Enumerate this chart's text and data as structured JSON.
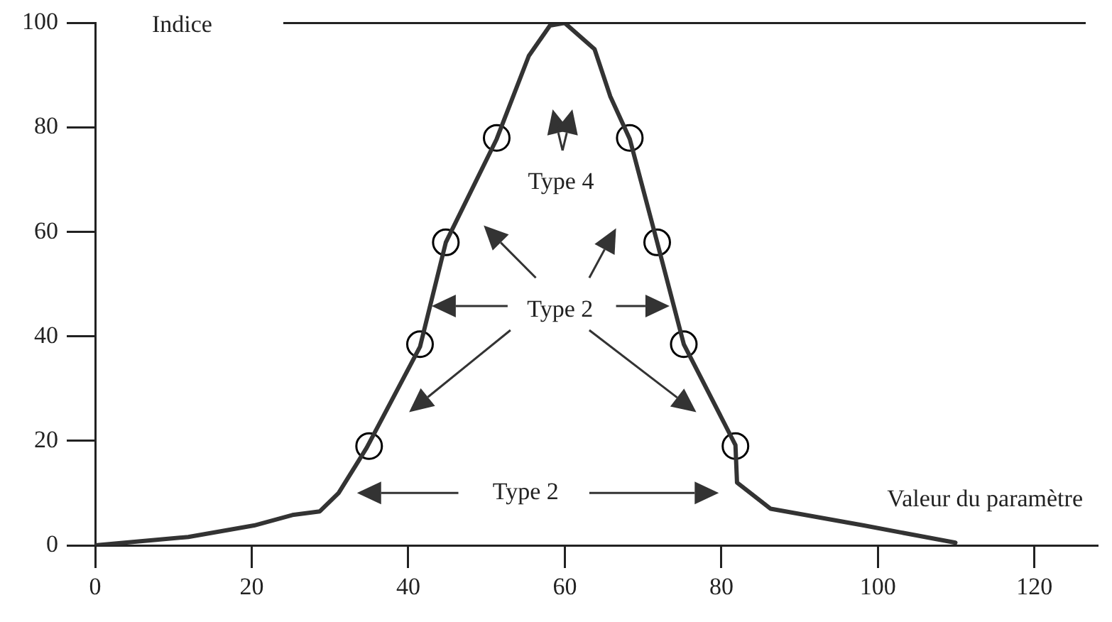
{
  "chart_data": {
    "type": "line",
    "xlabel": "Valeur du paramètre",
    "ylabel": "Indice",
    "xlim": [
      0,
      128
    ],
    "xticks": [
      0,
      20,
      40,
      60,
      80,
      100,
      120
    ],
    "ylim": [
      0,
      100
    ],
    "yticks": [
      0,
      20,
      40,
      60,
      80,
      100
    ],
    "grid": false,
    "legend": false,
    "series": [
      {
        "color": "#333333",
        "marker": "none",
        "line_style": "solid",
        "x": [
          0,
          11.9,
          20.3,
          25.2,
          28.7,
          31.1,
          34.7,
          41.5,
          44.8,
          51.3,
          55.4,
          58.1,
          60,
          63.8,
          65.8,
          68.3,
          71.8,
          75.2,
          81.8,
          82,
          86.3,
          98.2,
          109.9
        ],
        "values": [
          0,
          1.6,
          3.8,
          5.8,
          6.5,
          10,
          18.7,
          38,
          58,
          77.8,
          93.7,
          99.5,
          100,
          95,
          86,
          77.8,
          58,
          38.5,
          19.2,
          12,
          7,
          3.8,
          0.5
        ]
      },
      {
        "type": "scatter",
        "color": "#000000",
        "marker": "circle",
        "x": [
          35,
          41.5,
          44.8,
          51.3,
          68.3,
          71.8,
          75.2,
          81.8
        ],
        "values": [
          19,
          38.5,
          58,
          78,
          78,
          58,
          38.5,
          19
        ]
      }
    ],
    "ref_lines": [
      {
        "axis": "y",
        "value": 100
      }
    ],
    "annotations": [
      "Type 4",
      "Type 2",
      "Type 2"
    ]
  }
}
